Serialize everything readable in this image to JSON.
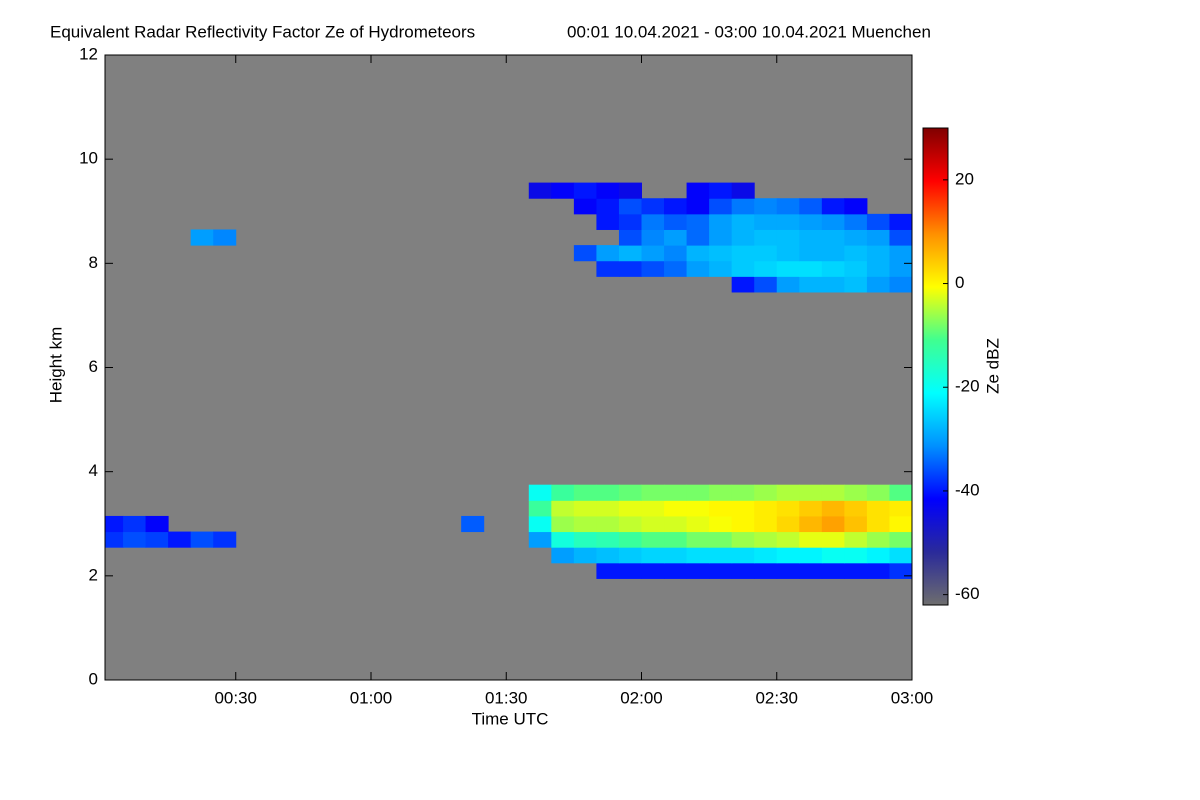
{
  "chart_data": {
    "type": "heatmap",
    "title": "Equivalent Radar Reflectivity Factor Ze of Hydrometeors",
    "subtitle": "00:01 10.04.2021 - 03:00 10.04.2021 Muenchen",
    "x_label": "Time UTC",
    "y_label": "Height km",
    "colorbar_label": "Ze dBZ",
    "background": "#808080",
    "colormap": [
      "#6e6e6e",
      "#2a2a9a",
      "#0000ff",
      "#0090ff",
      "#00ffff",
      "#40ff90",
      "#ffff00",
      "#ff9000",
      "#ff0000",
      "#800000"
    ],
    "xlim": [
      1,
      180
    ],
    "xticks": [
      {
        "value": 30,
        "label": "00:30"
      },
      {
        "value": 60,
        "label": "01:00"
      },
      {
        "value": 90,
        "label": "01:30"
      },
      {
        "value": 120,
        "label": "02:00"
      },
      {
        "value": 150,
        "label": "02:30"
      },
      {
        "value": 180,
        "label": "03:00"
      }
    ],
    "ylim": [
      0,
      12
    ],
    "yticks": [
      0,
      2,
      4,
      6,
      8,
      10,
      12
    ],
    "zlim": [
      -62,
      30
    ],
    "zticks": [
      -60,
      -40,
      -20,
      0,
      20
    ],
    "x": [
      2.5,
      7.5,
      12.5,
      17.5,
      22.5,
      27.5,
      32.5,
      37.5,
      42.5,
      47.5,
      52.5,
      57.5,
      62.5,
      67.5,
      72.5,
      77.5,
      82.5,
      87.5,
      92.5,
      97.5,
      102.5,
      107.5,
      112.5,
      117.5,
      122.5,
      127.5,
      132.5,
      137.5,
      142.5,
      147.5,
      152.5,
      157.5,
      162.5,
      167.5,
      172.5,
      177.5
    ],
    "y": [
      2.1,
      2.4,
      2.7,
      3.0,
      3.3,
      3.6,
      7.6,
      7.9,
      8.2,
      8.5,
      8.8,
      9.1,
      9.4
    ],
    "z": [
      [
        null,
        null,
        null,
        null,
        null,
        null,
        null,
        null,
        null,
        null,
        null,
        null,
        null,
        null,
        null,
        null,
        null,
        null,
        null,
        null,
        null,
        null,
        -40,
        -40,
        -40,
        -40,
        -40,
        -40,
        -40,
        -40,
        -40,
        -40,
        -40,
        -40,
        -40,
        -38
      ],
      [
        null,
        null,
        null,
        null,
        null,
        null,
        null,
        null,
        null,
        null,
        null,
        null,
        null,
        null,
        null,
        null,
        null,
        null,
        null,
        null,
        -30,
        -28,
        -27,
        -26,
        -25,
        -25,
        -24,
        -24,
        -24,
        -23,
        -22,
        -22,
        -20,
        -20,
        -22,
        -24
      ],
      [
        -38,
        -36,
        -37,
        -40,
        -36,
        -38,
        null,
        null,
        null,
        null,
        null,
        null,
        null,
        null,
        null,
        null,
        null,
        null,
        null,
        -30,
        -18,
        -15,
        -14,
        -12,
        -10,
        -10,
        -8,
        -8,
        -6,
        -5,
        -4,
        -2,
        -2,
        -4,
        -6,
        -8
      ],
      [
        -40,
        -38,
        -42,
        null,
        null,
        null,
        null,
        null,
        null,
        null,
        null,
        null,
        null,
        null,
        null,
        null,
        -35,
        null,
        null,
        -20,
        -6,
        -5,
        -5,
        -4,
        -3,
        -3,
        -2,
        -1,
        0,
        1,
        3,
        6,
        8,
        5,
        2,
        0
      ],
      [
        null,
        null,
        null,
        null,
        null,
        null,
        null,
        null,
        null,
        null,
        null,
        null,
        null,
        null,
        null,
        null,
        null,
        null,
        null,
        -12,
        -4,
        -3,
        -3,
        -2,
        -2,
        -1,
        -1,
        0,
        0,
        1,
        2,
        4,
        6,
        4,
        2,
        1
      ],
      [
        null,
        null,
        null,
        null,
        null,
        null,
        null,
        null,
        null,
        null,
        null,
        null,
        null,
        null,
        null,
        null,
        null,
        null,
        null,
        -20,
        -12,
        -10,
        -10,
        -9,
        -8,
        -8,
        -8,
        -7,
        -7,
        -6,
        -5,
        -5,
        -5,
        -6,
        -7,
        -10
      ],
      [
        null,
        null,
        null,
        null,
        null,
        null,
        null,
        null,
        null,
        null,
        null,
        null,
        null,
        null,
        null,
        null,
        null,
        null,
        null,
        null,
        null,
        null,
        null,
        null,
        null,
        null,
        null,
        null,
        -40,
        -36,
        -30,
        -28,
        -28,
        -27,
        -30,
        -32
      ],
      [
        null,
        null,
        null,
        null,
        null,
        null,
        null,
        null,
        null,
        null,
        null,
        null,
        null,
        null,
        null,
        null,
        null,
        null,
        null,
        null,
        null,
        null,
        -38,
        -38,
        -36,
        -34,
        -30,
        -28,
        -26,
        -25,
        -24,
        -24,
        -25,
        -26,
        -28,
        -30
      ],
      [
        null,
        null,
        null,
        null,
        null,
        null,
        null,
        null,
        null,
        null,
        null,
        null,
        null,
        null,
        null,
        null,
        null,
        null,
        null,
        null,
        null,
        -36,
        -30,
        -28,
        -30,
        -32,
        -28,
        -27,
        -26,
        -26,
        -27,
        -28,
        -28,
        -27,
        -28,
        -30
      ],
      [
        null,
        null,
        null,
        null,
        -30,
        -32,
        null,
        null,
        null,
        null,
        null,
        null,
        null,
        null,
        null,
        null,
        null,
        null,
        null,
        null,
        null,
        null,
        null,
        -36,
        -32,
        -30,
        -34,
        -30,
        -28,
        -27,
        -27,
        -28,
        -28,
        -29,
        -30,
        -36
      ],
      [
        null,
        null,
        null,
        null,
        null,
        null,
        null,
        null,
        null,
        null,
        null,
        null,
        null,
        null,
        null,
        null,
        null,
        null,
        null,
        null,
        null,
        null,
        -40,
        -38,
        -33,
        -35,
        -34,
        -30,
        -28,
        -29,
        -29,
        -30,
        -31,
        -33,
        -36,
        -40
      ],
      [
        null,
        null,
        null,
        null,
        null,
        null,
        null,
        null,
        null,
        null,
        null,
        null,
        null,
        null,
        null,
        null,
        null,
        null,
        null,
        null,
        null,
        -42,
        -40,
        -36,
        -38,
        -40,
        -42,
        -36,
        -33,
        -32,
        -33,
        -35,
        -40,
        -42,
        null,
        null
      ],
      [
        null,
        null,
        null,
        null,
        null,
        null,
        null,
        null,
        null,
        null,
        null,
        null,
        null,
        null,
        null,
        null,
        null,
        null,
        null,
        -44,
        -42,
        -40,
        -42,
        -44,
        null,
        null,
        -42,
        -40,
        -44,
        null,
        null,
        null,
        null,
        null,
        null,
        null
      ]
    ]
  }
}
